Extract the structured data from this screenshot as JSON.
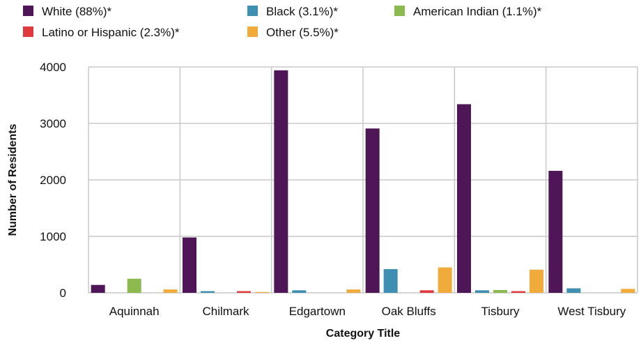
{
  "chart_data": {
    "type": "bar",
    "title": "",
    "xlabel": "Category Title",
    "ylabel": "Number of Residents",
    "categories": [
      "Aquinnah",
      "Chilmark",
      "Edgartown",
      "Oak Bluffs",
      "Tisbury",
      "West Tisbury"
    ],
    "ylim": [
      0,
      4000
    ],
    "yticks": [
      0,
      1000,
      2000,
      3000,
      4000
    ],
    "ytick_labels": [
      "0",
      "1000",
      "2000",
      "3000",
      "4000"
    ],
    "grid": true,
    "legend_position": "top",
    "series": [
      {
        "name": "White (88%)*",
        "color": "#4f1657",
        "values": [
          140,
          980,
          3940,
          2910,
          3340,
          2160
        ]
      },
      {
        "name": "Black (3.1%)*",
        "color": "#3f8fb3",
        "values": [
          0,
          30,
          45,
          420,
          45,
          80
        ]
      },
      {
        "name": "American Indian (1.1%)*",
        "color": "#8cba4e",
        "values": [
          250,
          0,
          0,
          0,
          50,
          0
        ]
      },
      {
        "name": "Latino or Hispanic (2.3%)*",
        "color": "#e03a3e",
        "values": [
          0,
          30,
          0,
          45,
          30,
          0
        ]
      },
      {
        "name": "Other (5.5%)*",
        "color": "#f0ab3a",
        "values": [
          60,
          15,
          60,
          450,
          410,
          70
        ]
      }
    ]
  }
}
